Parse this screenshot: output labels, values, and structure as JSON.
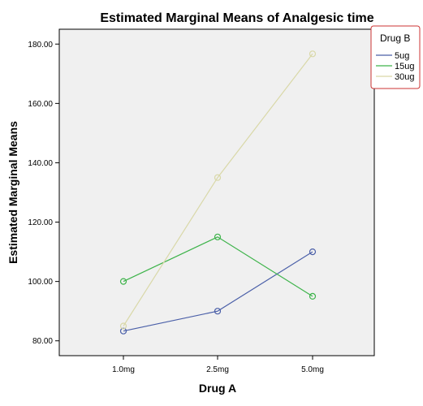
{
  "chart_data": {
    "type": "line",
    "title": "Estimated Marginal Means of Analgesic time",
    "xlabel": "Drug A",
    "ylabel": "Estimated Marginal Means",
    "categories": [
      "1.0mg",
      "2.5mg",
      "5.0mg"
    ],
    "ylim": [
      75,
      185
    ],
    "yticks": [
      80,
      100,
      120,
      140,
      160,
      180
    ],
    "ytick_labels": [
      "80.00",
      "100.00",
      "120.00",
      "140.00",
      "160.00",
      "180.00"
    ],
    "grid": false,
    "legend": {
      "title": "Drug B",
      "placement": "top-right"
    },
    "series": [
      {
        "name": "5ug",
        "color": "#4a5fa8",
        "values": [
          83.3,
          90.0,
          110.0
        ]
      },
      {
        "name": "15ug",
        "color": "#3db34a",
        "values": [
          100.0,
          115.0,
          95.0
        ]
      },
      {
        "name": "30ug",
        "color": "#d9d8a8",
        "values": [
          85.0,
          135.0,
          176.7
        ]
      }
    ],
    "colors": {
      "plot_background": "#f0f0f0",
      "legend_border": "#cc3333"
    }
  }
}
